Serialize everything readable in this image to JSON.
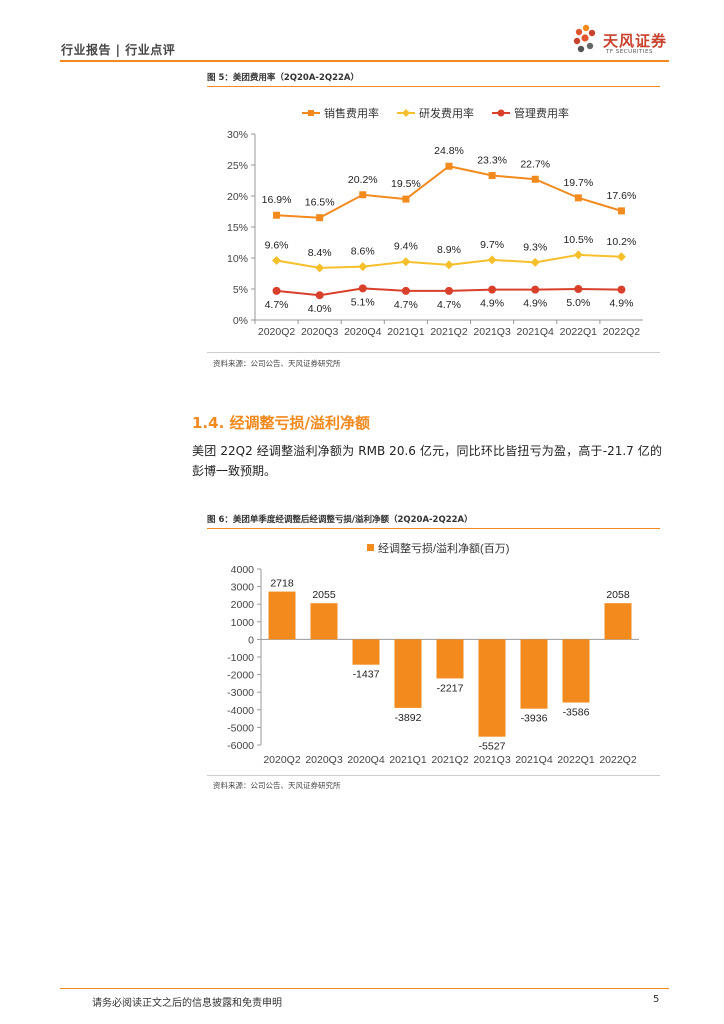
{
  "header": {
    "left": "行业报告 | 行业点评",
    "brand": "天风证券",
    "brand_sub": "TF SECURITIES"
  },
  "figure5": {
    "caption": "图 5：美团费用率（2Q20A-2Q22A）",
    "source": "资料来源：公司公告、天风证券研究所"
  },
  "section": {
    "title": "1.4. 经调整亏损/溢利净额",
    "body": "美团 22Q2 经调整溢利净额为 RMB 20.6 亿元，同比环比皆扭亏为盈，高于-21.7 亿的彭博一致预期。"
  },
  "figure6": {
    "caption": "图 6：美团单季度经调整后经调整亏损/溢利净额（2Q20A-2Q22A）",
    "source": "资料来源：公司公告、天风证券研究所"
  },
  "footer": {
    "disclaimer": "请务必阅读正文之后的信息披露和免责申明",
    "page": "5"
  },
  "colors": {
    "accent": "#f28a1e",
    "sales": "#f28a1e",
    "rd": "#f5c02b",
    "mgmt": "#d9402b"
  },
  "chart_data": [
    {
      "type": "line",
      "title": "",
      "categories": [
        "2020Q2",
        "2020Q3",
        "2020Q4",
        "2021Q1",
        "2021Q2",
        "2021Q3",
        "2021Q4",
        "2022Q1",
        "2022Q2"
      ],
      "ylim": [
        0,
        30
      ],
      "yticks": [
        "0%",
        "5%",
        "10%",
        "15%",
        "20%",
        "25%",
        "30%"
      ],
      "legend_position": "top",
      "series": [
        {
          "name": "销售费用率",
          "values": [
            16.9,
            16.5,
            20.2,
            19.5,
            24.8,
            23.3,
            22.7,
            19.7,
            17.6
          ],
          "labels": [
            "16.9%",
            "16.5%",
            "20.2%",
            "19.5%",
            "24.8%",
            "23.3%",
            "22.7%",
            "19.7%",
            "17.6%"
          ]
        },
        {
          "name": "研发费用率",
          "values": [
            9.6,
            8.4,
            8.6,
            9.4,
            8.9,
            9.7,
            9.3,
            10.5,
            10.2
          ],
          "labels": [
            "9.6%",
            "8.4%",
            "8.6%",
            "9.4%",
            "8.9%",
            "9.7%",
            "9.3%",
            "10.5%",
            "10.2%"
          ]
        },
        {
          "name": "管理费用率",
          "values": [
            4.7,
            4.0,
            5.1,
            4.7,
            4.7,
            4.9,
            4.9,
            5.0,
            4.9
          ],
          "labels": [
            "4.7%",
            "4.0%",
            "5.1%",
            "4.7%",
            "4.7%",
            "4.9%",
            "4.9%",
            "5.0%",
            "4.9%"
          ]
        }
      ]
    },
    {
      "type": "bar",
      "title": "",
      "categories": [
        "2020Q2",
        "2020Q3",
        "2020Q4",
        "2021Q1",
        "2021Q2",
        "2021Q3",
        "2021Q4",
        "2022Q1",
        "2022Q2"
      ],
      "ylim": [
        -6000,
        4000
      ],
      "yticks": [
        "-6000",
        "-5000",
        "-4000",
        "-3000",
        "-2000",
        "-1000",
        "0",
        "1000",
        "2000",
        "3000",
        "4000"
      ],
      "legend_position": "top",
      "series": [
        {
          "name": "经调整亏损/溢利净额(百万)",
          "values": [
            2718,
            2055,
            -1437,
            -3892,
            -2217,
            -5527,
            -3936,
            -3586,
            2058
          ],
          "labels": [
            "2718",
            "2055",
            "-1437",
            "-3892",
            "-2217",
            "-5527",
            "-3936",
            "-3586",
            "2058"
          ]
        }
      ]
    }
  ]
}
